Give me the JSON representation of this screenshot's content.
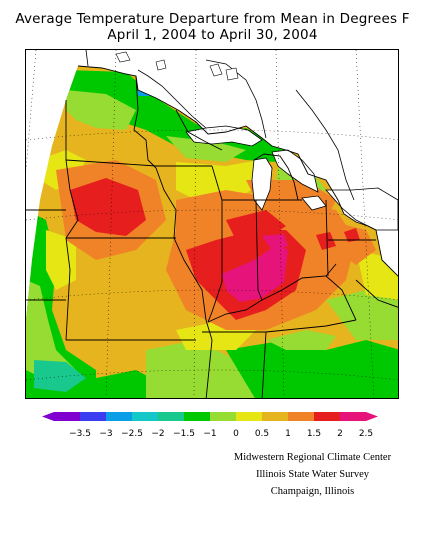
{
  "title": {
    "line1": "Average Temperature Departure from Mean in Degrees F",
    "line2": "April 1, 2004 to April 30, 2004"
  },
  "map": {
    "description_visible": false,
    "state_lines_color": "#000000",
    "graticule_color": "#000000"
  },
  "legend": {
    "bins": [
      {
        "color": "#8000d0"
      },
      {
        "color": "#3c3cf0"
      },
      {
        "color": "#0a9ee6"
      },
      {
        "color": "#14c8c8"
      },
      {
        "color": "#19c88c"
      },
      {
        "color": "#00c800"
      },
      {
        "color": "#96dc32"
      },
      {
        "color": "#e6e614"
      },
      {
        "color": "#e6b41e"
      },
      {
        "color": "#f08228"
      },
      {
        "color": "#e61e1e"
      },
      {
        "color": "#e6147a"
      }
    ],
    "labels": [
      "−3.5",
      "−3",
      "−2.5",
      "−2",
      "−1.5",
      "−1",
      "0",
      "0.5",
      "1",
      "1.5",
      "2",
      "2.5"
    ]
  },
  "credits": {
    "line1": "Midwestern Regional Climate Center",
    "line2": "Illinois State Water Survey",
    "line3": "Champaign, Illinois"
  }
}
